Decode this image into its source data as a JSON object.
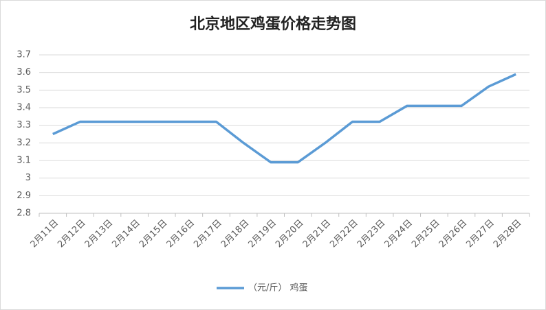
{
  "chart_data": {
    "type": "line",
    "title": "北京地区鸡蛋价格走势图",
    "categories": [
      "2月11日",
      "2月12日",
      "2月13日",
      "2月14日",
      "2月15日",
      "2月16日",
      "2月17日",
      "2月18日",
      "2月19日",
      "2月20日",
      "2月21日",
      "2月22日",
      "2月23日",
      "2月24日",
      "2月25日",
      "2月26日",
      "2月27日",
      "2月28日"
    ],
    "series": [
      {
        "name": "（元/斤） 鸡蛋",
        "color": "#5b9bd5",
        "values": [
          3.25,
          3.32,
          3.32,
          3.32,
          3.32,
          3.32,
          3.32,
          3.2,
          3.09,
          3.09,
          3.2,
          3.32,
          3.32,
          3.41,
          3.41,
          3.41,
          3.52,
          3.59
        ]
      }
    ],
    "ylim": [
      2.8,
      3.7
    ],
    "yticks": [
      2.8,
      2.9,
      3,
      3.1,
      3.2,
      3.3,
      3.4,
      3.5,
      3.6,
      3.7
    ],
    "grid": true,
    "legend": "bottom"
  }
}
